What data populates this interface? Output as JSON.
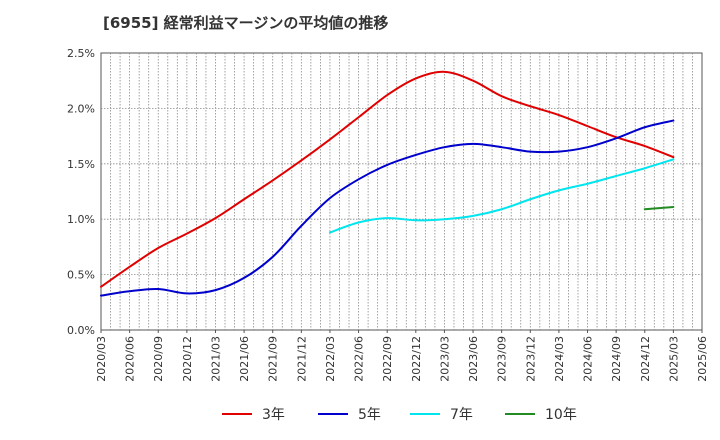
{
  "chart_data": {
    "type": "line",
    "title": "[6955]  経常利益マージンの平均値の推移",
    "xlabel": "",
    "ylabel": "",
    "ylim": [
      0,
      2.5
    ],
    "y_ticks": [
      "0.0%",
      "0.5%",
      "1.0%",
      "1.5%",
      "2.0%",
      "2.5%"
    ],
    "x_ticks": [
      "2020/03",
      "2020/06",
      "2020/09",
      "2020/12",
      "2021/03",
      "2021/06",
      "2021/09",
      "2021/12",
      "2022/03",
      "2022/06",
      "2022/09",
      "2022/12",
      "2023/03",
      "2023/06",
      "2023/09",
      "2023/12",
      "2024/03",
      "2024/06",
      "2024/09",
      "2024/12",
      "2025/03",
      "2025/06"
    ],
    "grid": true,
    "legend_position": "bottom",
    "series": [
      {
        "name": "3年",
        "color": "#e00000",
        "values": [
          0.39,
          0.57,
          0.74,
          0.87,
          1.01,
          1.18,
          1.35,
          1.53,
          1.72,
          1.92,
          2.12,
          2.27,
          2.33,
          2.25,
          2.11,
          2.02,
          1.94,
          1.84,
          1.74,
          1.66,
          1.56,
          null
        ]
      },
      {
        "name": "5年",
        "color": "#0000cc",
        "values": [
          0.31,
          0.35,
          0.37,
          0.33,
          0.36,
          0.47,
          0.66,
          0.94,
          1.19,
          1.36,
          1.49,
          1.58,
          1.65,
          1.68,
          1.65,
          1.61,
          1.61,
          1.65,
          1.73,
          1.83,
          1.89,
          null
        ]
      },
      {
        "name": "7年",
        "color": "#00e5ee",
        "values": [
          null,
          null,
          null,
          null,
          null,
          null,
          null,
          null,
          0.88,
          0.97,
          1.01,
          0.99,
          1.0,
          1.03,
          1.09,
          1.18,
          1.26,
          1.32,
          1.39,
          1.46,
          1.54,
          null
        ]
      },
      {
        "name": "10年",
        "color": "#228b22",
        "values": [
          null,
          null,
          null,
          null,
          null,
          null,
          null,
          null,
          null,
          null,
          null,
          null,
          null,
          null,
          null,
          null,
          null,
          null,
          null,
          1.09,
          1.11,
          null
        ]
      }
    ]
  }
}
